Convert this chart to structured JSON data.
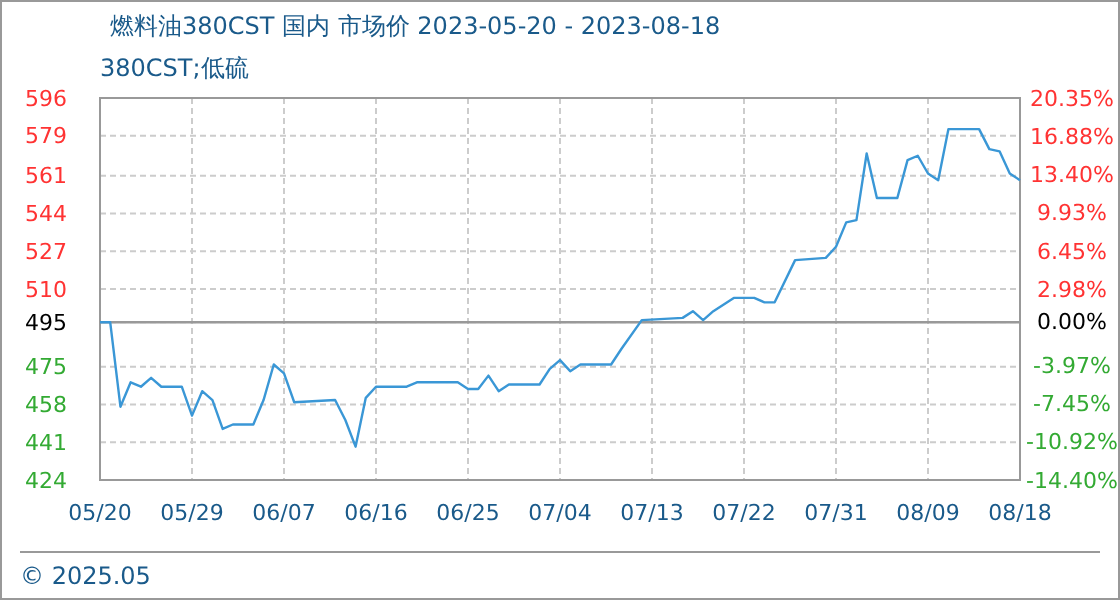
{
  "chart_data": {
    "type": "line",
    "title": "燃料油380CST 国内 市场价 2023-05-20 - 2023-08-18",
    "subtitle": "380CST;低硫",
    "x": [
      "2023-05-20",
      "2023-05-21",
      "2023-05-22",
      "2023-05-23",
      "2023-05-24",
      "2023-05-25",
      "2023-05-26",
      "2023-05-28",
      "2023-05-29",
      "2023-05-30",
      "2023-05-31",
      "2023-06-01",
      "2023-06-02",
      "2023-06-04",
      "2023-06-05",
      "2023-06-06",
      "2023-06-07",
      "2023-06-08",
      "2023-06-12",
      "2023-06-13",
      "2023-06-14",
      "2023-06-15",
      "2023-06-16",
      "2023-06-19",
      "2023-06-20",
      "2023-06-24",
      "2023-06-25",
      "2023-06-26",
      "2023-06-27",
      "2023-06-28",
      "2023-06-29",
      "2023-07-02",
      "2023-07-03",
      "2023-07-04",
      "2023-07-05",
      "2023-07-06",
      "2023-07-09",
      "2023-07-10",
      "2023-07-12",
      "2023-07-16",
      "2023-07-17",
      "2023-07-18",
      "2023-07-19",
      "2023-07-21",
      "2023-07-23",
      "2023-07-24",
      "2023-07-25",
      "2023-07-27",
      "2023-07-30",
      "2023-07-31",
      "2023-08-01",
      "2023-08-02",
      "2023-08-03",
      "2023-08-04",
      "2023-08-06",
      "2023-08-07",
      "2023-08-08",
      "2023-08-09",
      "2023-08-10",
      "2023-08-11",
      "2023-08-14",
      "2023-08-15",
      "2023-08-16",
      "2023-08-17",
      "2023-08-18"
    ],
    "series": [
      {
        "color": "#3a97d6",
        "values": [
          495,
          495,
          457,
          468,
          466,
          470,
          466,
          466,
          453,
          464,
          460,
          447,
          449,
          449,
          460,
          476,
          472,
          459,
          460,
          451,
          439,
          461,
          466,
          466,
          468,
          468,
          465,
          465,
          471,
          464,
          467,
          467,
          474,
          478,
          473,
          476,
          476,
          483,
          496,
          497,
          500,
          496,
          500,
          506,
          506,
          504,
          504,
          523,
          524,
          529,
          540,
          541,
          571,
          551,
          551,
          568,
          570,
          562,
          559,
          582,
          582,
          573,
          572,
          562,
          559
        ]
      }
    ],
    "xlim": [
      "2023-05-20",
      "2023-08-18"
    ],
    "xticks": [
      {
        "value": "2023-05-20",
        "label": "05/20"
      },
      {
        "value": "2023-05-29",
        "label": "05/29"
      },
      {
        "value": "2023-06-07",
        "label": "06/07"
      },
      {
        "value": "2023-06-16",
        "label": "06/16"
      },
      {
        "value": "2023-06-25",
        "label": "06/25"
      },
      {
        "value": "2023-07-04",
        "label": "07/04"
      },
      {
        "value": "2023-07-13",
        "label": "07/13"
      },
      {
        "value": "2023-07-22",
        "label": "07/22"
      },
      {
        "value": "2023-07-31",
        "label": "07/31"
      },
      {
        "value": "2023-08-09",
        "label": "08/09"
      },
      {
        "value": "2023-08-18",
        "label": "08/18"
      }
    ],
    "ylim": [
      424,
      596
    ],
    "yticks": [
      596,
      579,
      561,
      544,
      527,
      510,
      495,
      475,
      458,
      441,
      424
    ],
    "y2lim": [
      -14.4,
      20.35
    ],
    "y2ticks": [
      {
        "value": 20.35,
        "label": "20.35%"
      },
      {
        "value": 16.88,
        "label": "16.88%"
      },
      {
        "value": 13.4,
        "label": "13.40%"
      },
      {
        "value": 9.93,
        "label": "9.93%"
      },
      {
        "value": 6.45,
        "label": "6.45%"
      },
      {
        "value": 2.98,
        "label": "2.98%"
      },
      {
        "value": 0,
        "label": "0.00%"
      },
      {
        "value": -3.97,
        "label": "-3.97%"
      },
      {
        "value": -7.45,
        "label": "-7.45%"
      },
      {
        "value": -10.92,
        "label": "-10.92%"
      },
      {
        "value": -14.4,
        "label": "-14.40%"
      }
    ],
    "ref_lines": [
      {
        "axis": "y",
        "value": 495,
        "color": "#999999",
        "line_style": "solid"
      }
    ],
    "grid": true,
    "marker": "none",
    "line_style": "solid",
    "annotations": [
      "© 2025.05"
    ]
  }
}
